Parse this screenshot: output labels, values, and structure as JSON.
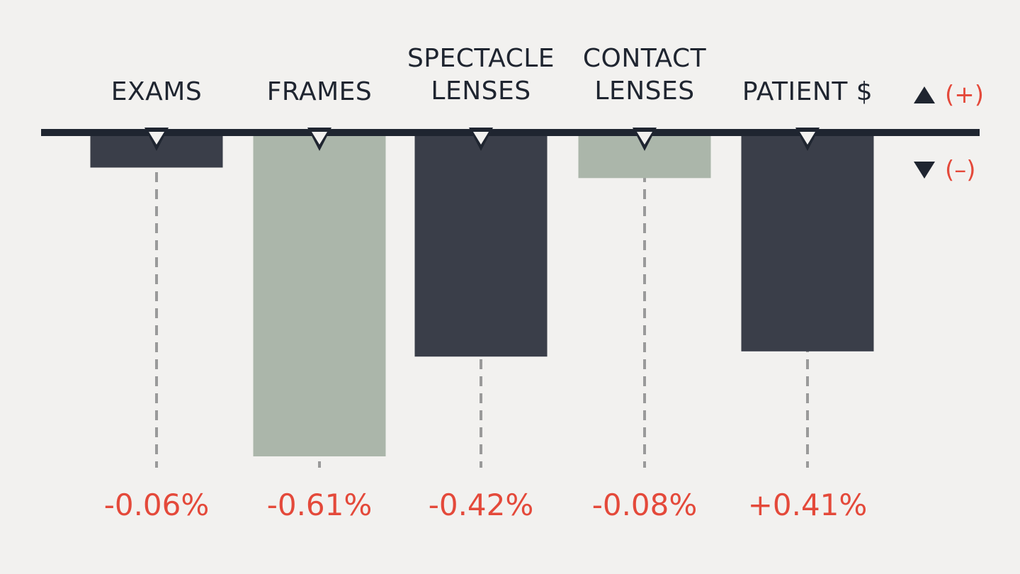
{
  "colors": {
    "background": "#f2f1ef",
    "axis": "#1f2530",
    "dark_bar": "#3a3e49",
    "light_bar": "#abb6aa",
    "value_text": "#e4493a",
    "dash": "#9a9a9a"
  },
  "legend": {
    "positive": {
      "icon": "triangle-up-icon",
      "text": "(+)"
    },
    "negative": {
      "icon": "triangle-down-icon",
      "text": "(–)"
    }
  },
  "chart_data": {
    "type": "bar",
    "categories": [
      {
        "lines": [
          "EXAMS"
        ]
      },
      {
        "lines": [
          "FRAMES"
        ]
      },
      {
        "lines": [
          "SPECTACLE",
          "LENSES"
        ]
      },
      {
        "lines": [
          "CONTACT",
          "LENSES"
        ]
      },
      {
        "lines": [
          "PATIENT $"
        ]
      }
    ],
    "values": [
      -0.06,
      -0.61,
      -0.42,
      -0.08,
      0.41
    ],
    "value_labels": [
      "-0.06%",
      "-0.61%",
      "-0.42%",
      "-0.08%",
      "+0.41%"
    ],
    "bar_styles": [
      "dark",
      "light",
      "dark",
      "light",
      "dark"
    ],
    "bars_drawn_below_axis": true,
    "title": "",
    "xlabel": "",
    "ylabel": "",
    "ylim": [
      -0.61,
      0
    ]
  }
}
